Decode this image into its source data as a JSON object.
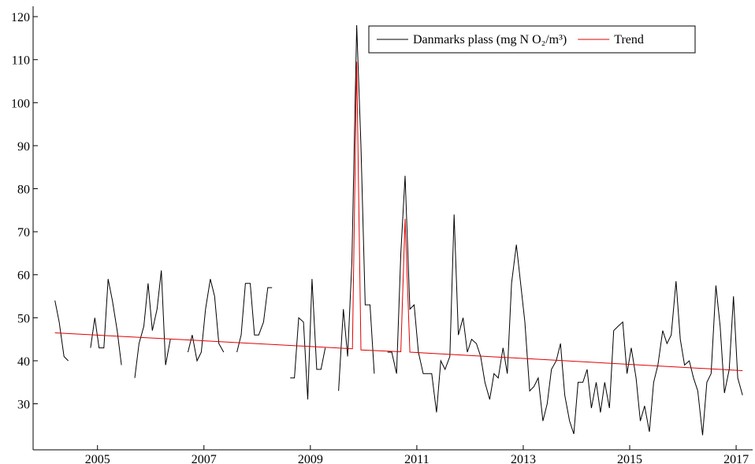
{
  "chart_data": {
    "type": "line",
    "x": [
      2004.2,
      2004.28,
      2004.37,
      2004.45,
      2004.53,
      2004.62,
      2004.7,
      2004.78,
      2004.87,
      2004.95,
      2005.03,
      2005.12,
      2005.2,
      2005.28,
      2005.37,
      2005.45,
      2005.53,
      2005.62,
      2005.7,
      2005.78,
      2005.87,
      2005.95,
      2006.03,
      2006.12,
      2006.2,
      2006.28,
      2006.37,
      2006.45,
      2006.53,
      2006.62,
      2006.7,
      2006.78,
      2006.87,
      2006.95,
      2007.03,
      2007.12,
      2007.2,
      2007.28,
      2007.37,
      2007.45,
      2007.53,
      2007.62,
      2007.7,
      2007.78,
      2007.87,
      2007.95,
      2008.03,
      2008.12,
      2008.2,
      2008.28,
      2008.37,
      2008.45,
      2008.53,
      2008.62,
      2008.7,
      2008.78,
      2008.87,
      2008.95,
      2009.03,
      2009.12,
      2009.2,
      2009.28,
      2009.37,
      2009.45,
      2009.53,
      2009.62,
      2009.7,
      2009.78,
      2009.87,
      2009.95,
      2010.03,
      2010.12,
      2010.2,
      2010.28,
      2010.37,
      2010.45,
      2010.53,
      2010.62,
      2010.7,
      2010.78,
      2010.87,
      2010.95,
      2011.03,
      2011.12,
      2011.2,
      2011.28,
      2011.37,
      2011.45,
      2011.53,
      2011.62,
      2011.7,
      2011.78,
      2011.87,
      2011.95,
      2012.03,
      2012.12,
      2012.2,
      2012.28,
      2012.37,
      2012.45,
      2012.53,
      2012.62,
      2012.7,
      2012.78,
      2012.87,
      2012.95,
      2013.03,
      2013.12,
      2013.2,
      2013.28,
      2013.37,
      2013.45,
      2013.53,
      2013.62,
      2013.7,
      2013.78,
      2013.87,
      2013.95,
      2014.03,
      2014.12,
      2014.2,
      2014.28,
      2014.37,
      2014.45,
      2014.53,
      2014.62,
      2014.7,
      2014.78,
      2014.87,
      2014.95,
      2015.03,
      2015.12,
      2015.2,
      2015.28,
      2015.37,
      2015.45,
      2015.53,
      2015.62,
      2015.7,
      2015.78,
      2015.87,
      2015.95,
      2016.03,
      2016.12,
      2016.2,
      2016.28,
      2016.37,
      2016.45,
      2016.53,
      2016.62,
      2016.7,
      2016.78,
      2016.87,
      2016.95,
      2017.03,
      2017.12
    ],
    "series": [
      {
        "name": "Danmarks plass (mg N O₂/m³)",
        "color": "#000000",
        "values": [
          54,
          49,
          41,
          40,
          null,
          null,
          null,
          null,
          43,
          50,
          43,
          43,
          59,
          54,
          47,
          39,
          null,
          null,
          36,
          44,
          48,
          58,
          47,
          52,
          61,
          39,
          45,
          null,
          null,
          null,
          42,
          46,
          40,
          42,
          52,
          59,
          55,
          44,
          42,
          null,
          null,
          42,
          46,
          58,
          58,
          46,
          46,
          49,
          57,
          57,
          null,
          null,
          null,
          36,
          36,
          50,
          49,
          31,
          59,
          38,
          38,
          43,
          null,
          null,
          33,
          52,
          41,
          63,
          118,
          90,
          53,
          53,
          37,
          null,
          null,
          42,
          42,
          37,
          65,
          83,
          52,
          53,
          42,
          37,
          37,
          37,
          28,
          40,
          38,
          41,
          74,
          46,
          50,
          42,
          45,
          44,
          41,
          35,
          31,
          37,
          36,
          43,
          37,
          58,
          67,
          58,
          49,
          33,
          34,
          36,
          26,
          30,
          38,
          40,
          44,
          32,
          26,
          23,
          35,
          35,
          38,
          29,
          35,
          28,
          35,
          29,
          47,
          48,
          49,
          37,
          43,
          36,
          26,
          29.5,
          23.5,
          35,
          39,
          47,
          44,
          46,
          58.5,
          45,
          39,
          40,
          36,
          33,
          22.7,
          35,
          37,
          57.5,
          48,
          32.5,
          38,
          55,
          36,
          32
        ]
      },
      {
        "name": "Trend",
        "color": "#e00000",
        "x": [
          2004.2,
          2009.79,
          2009.87,
          2009.95,
          2010.7,
          2010.78,
          2010.87,
          2017.12
        ],
        "values": [
          46.5,
          42.8,
          109.5,
          42.5,
          42.1,
          73,
          42,
          37.7
        ]
      }
    ],
    "xlim": [
      2003.79,
      2017.31
    ],
    "xticks": [
      2005,
      2007,
      2009,
      2011,
      2013,
      2015,
      2017
    ],
    "ylim": [
      19.3,
      122.4
    ],
    "yticks": [
      30,
      40,
      50,
      60,
      70,
      80,
      90,
      100,
      110,
      120
    ],
    "legend": "upper right"
  }
}
